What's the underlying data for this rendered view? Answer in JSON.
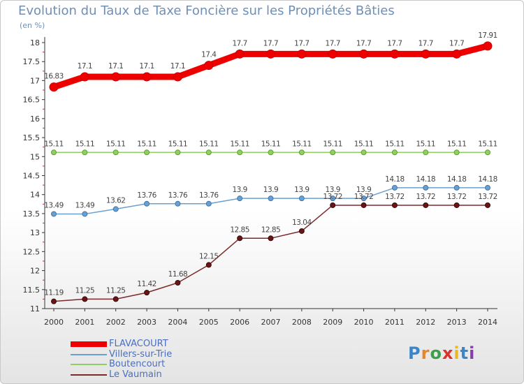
{
  "chart_data": {
    "type": "line",
    "title": "Evolution du Taux de Taxe Foncière sur les Propriétés Bâties",
    "ylabel": "(en %)",
    "xlabel": "",
    "x": [
      "2000",
      "2001",
      "2002",
      "2003",
      "2004",
      "2005",
      "2006",
      "2007",
      "2008",
      "2009",
      "2010",
      "2011",
      "2012",
      "2013",
      "2014"
    ],
    "ylim": [
      11,
      18
    ],
    "yticks": [
      "11",
      "11.5",
      "12",
      "12.5",
      "13",
      "13.5",
      "14",
      "14.5",
      "15",
      "15.5",
      "16",
      "16.5",
      "17",
      "17.5",
      "18"
    ],
    "grid": false,
    "legend_position": "bottom-left",
    "series": [
      {
        "name": "FLAVACOURT",
        "color": "#ee0000",
        "values": [
          16.83,
          17.1,
          17.1,
          17.1,
          17.1,
          17.4,
          17.7,
          17.7,
          17.7,
          17.7,
          17.7,
          17.7,
          17.7,
          17.7,
          17.91
        ],
        "labels": [
          "16.83",
          "17.1",
          "17.1",
          "17.1",
          "17.1",
          "17.4",
          "17.7",
          "17.7",
          "17.7",
          "17.7",
          "17.7",
          "17.7",
          "17.7",
          "17.7",
          "17.91"
        ]
      },
      {
        "name": "Villers-sur-Trie",
        "color": "#6aa0d0",
        "values": [
          13.49,
          13.49,
          13.62,
          13.76,
          13.76,
          13.76,
          13.9,
          13.9,
          13.9,
          13.9,
          13.9,
          14.18,
          14.18,
          14.18,
          14.18
        ],
        "labels": [
          "13.49",
          "13.49",
          "13.62",
          "13.76",
          "13.76",
          "13.76",
          "13.9",
          "13.9",
          "13.9",
          "13.9",
          "13.9",
          "14.18",
          "14.18",
          "14.18",
          "14.18"
        ]
      },
      {
        "name": "Boutencourt",
        "color": "#90d060",
        "values": [
          15.11,
          15.11,
          15.11,
          15.11,
          15.11,
          15.11,
          15.11,
          15.11,
          15.11,
          15.11,
          15.11,
          15.11,
          15.11,
          15.11,
          15.11
        ],
        "labels": [
          "15.11",
          "15.11",
          "15.11",
          "15.11",
          "15.11",
          "15.11",
          "15.11",
          "15.11",
          "15.11",
          "15.11",
          "15.11",
          "15.11",
          "15.11",
          "15.11",
          "15.11"
        ]
      },
      {
        "name": "Le Vaumain",
        "color": "#7a2a2a",
        "values": [
          11.19,
          11.25,
          11.25,
          11.42,
          11.68,
          12.15,
          12.85,
          12.85,
          13.04,
          13.72,
          13.72,
          13.72,
          13.72,
          13.72,
          13.72
        ],
        "labels": [
          "11.19",
          "11.25",
          "11.25",
          "11.42",
          "11.68",
          "12.15",
          "12.85",
          "12.85",
          "13.04",
          "13.72",
          "13.72",
          "13.72",
          "13.72",
          "13.72",
          "13.72"
        ]
      }
    ]
  }
}
